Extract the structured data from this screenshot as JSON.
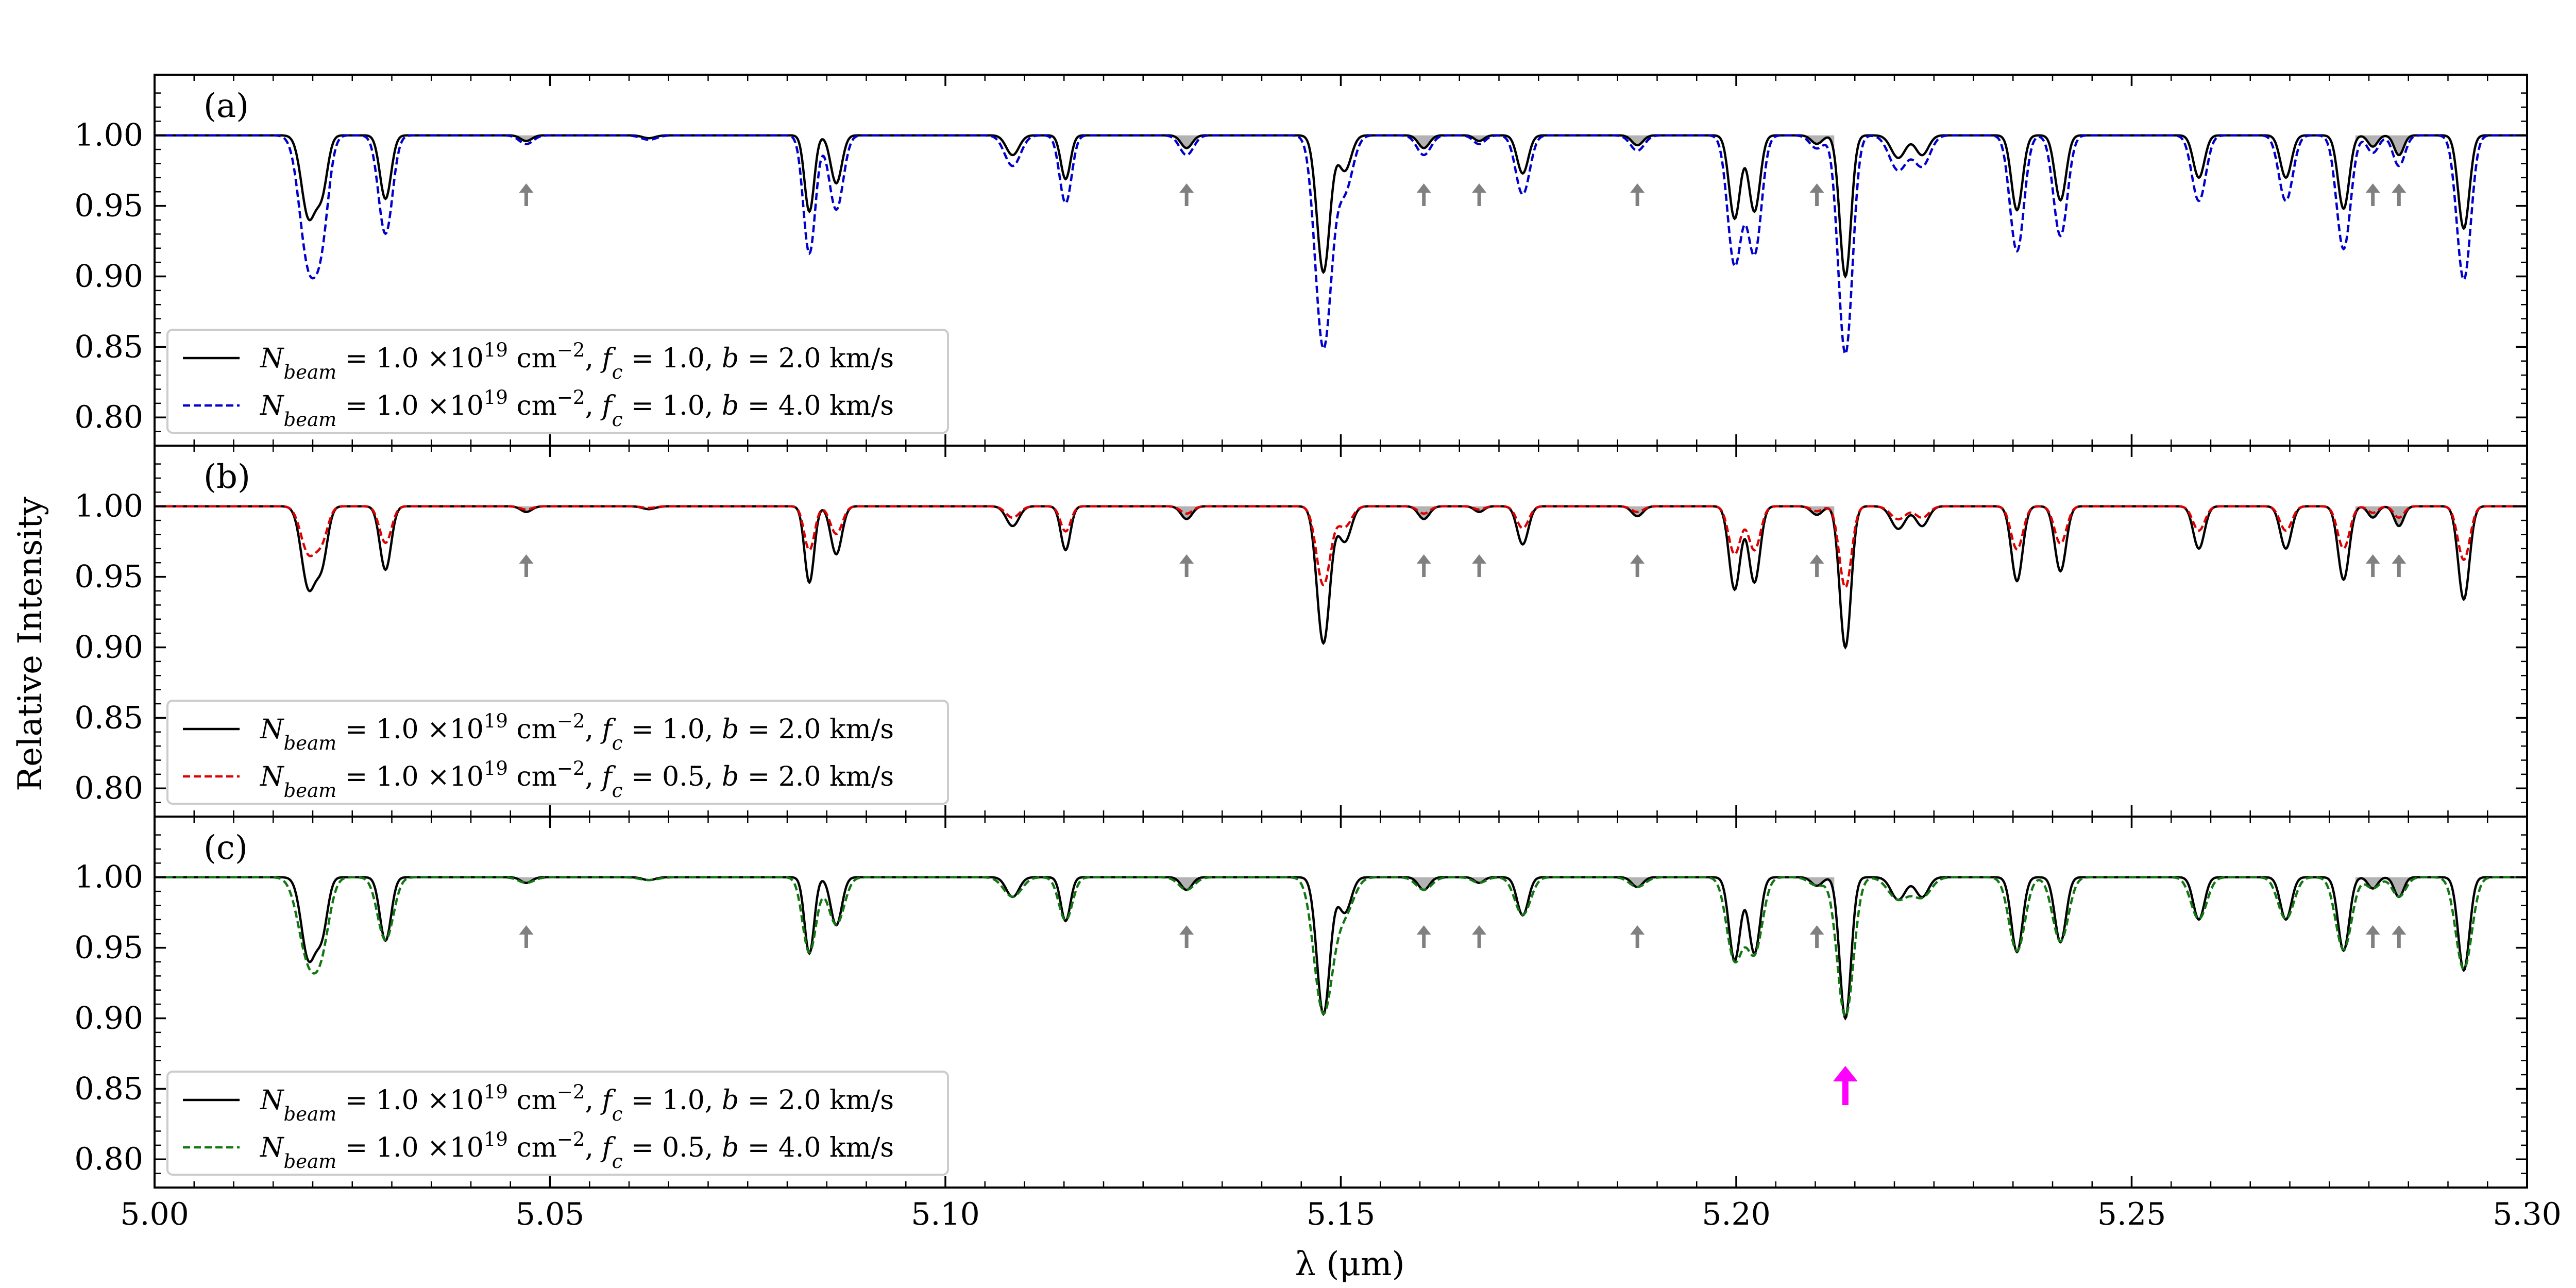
{
  "chart_data": {
    "type": "line",
    "title": "",
    "xlabel": "λ (μm)",
    "ylabel": "Relative Intensity",
    "xlim": [
      5.0,
      5.3
    ],
    "ylim": [
      0.78,
      1.043
    ],
    "x_ticks": [
      "5.00",
      "5.05",
      "5.10",
      "5.15",
      "5.20",
      "5.25",
      "5.30"
    ],
    "y_ticks": [
      "0.80",
      "0.85",
      "0.90",
      "0.95",
      "1.00"
    ],
    "gray_marker_positions": [
      5.047,
      5.1305,
      5.1605,
      5.1675,
      5.1875,
      5.2102,
      5.2805,
      5.2838
    ],
    "magenta_marker_position": 5.2138,
    "magenta_marker_panel": "(c)",
    "lines": [
      {
        "center": 5.0195,
        "depth": 0.058,
        "sigma": 0.0009
      },
      {
        "center": 5.0212,
        "depth": 0.035,
        "sigma": 0.0007
      },
      {
        "center": 5.0292,
        "depth": 0.045,
        "sigma": 0.0007
      },
      {
        "center": 5.047,
        "depth": 0.004,
        "sigma": 0.0007
      },
      {
        "center": 5.0625,
        "depth": 0.002,
        "sigma": 0.0008
      },
      {
        "center": 5.0828,
        "depth": 0.054,
        "sigma": 0.0006
      },
      {
        "center": 5.0862,
        "depth": 0.034,
        "sigma": 0.0007
      },
      {
        "center": 5.1085,
        "depth": 0.014,
        "sigma": 0.0008
      },
      {
        "center": 5.1152,
        "depth": 0.031,
        "sigma": 0.0006
      },
      {
        "center": 5.1305,
        "depth": 0.009,
        "sigma": 0.0007
      },
      {
        "center": 5.1478,
        "depth": 0.097,
        "sigma": 0.0008
      },
      {
        "center": 5.1505,
        "depth": 0.025,
        "sigma": 0.0008
      },
      {
        "center": 5.1605,
        "depth": 0.009,
        "sigma": 0.0007
      },
      {
        "center": 5.1675,
        "depth": 0.004,
        "sigma": 0.0006
      },
      {
        "center": 5.173,
        "depth": 0.027,
        "sigma": 0.0007
      },
      {
        "center": 5.1875,
        "depth": 0.007,
        "sigma": 0.0007
      },
      {
        "center": 5.1998,
        "depth": 0.059,
        "sigma": 0.0007
      },
      {
        "center": 5.2023,
        "depth": 0.054,
        "sigma": 0.0007
      },
      {
        "center": 5.2102,
        "depth": 0.006,
        "sigma": 0.0007
      },
      {
        "center": 5.2138,
        "depth": 0.1,
        "sigma": 0.0007
      },
      {
        "center": 5.2205,
        "depth": 0.016,
        "sigma": 0.0009
      },
      {
        "center": 5.2235,
        "depth": 0.014,
        "sigma": 0.0008
      },
      {
        "center": 5.2355,
        "depth": 0.053,
        "sigma": 0.0007
      },
      {
        "center": 5.241,
        "depth": 0.046,
        "sigma": 0.0007
      },
      {
        "center": 5.2585,
        "depth": 0.03,
        "sigma": 0.0007
      },
      {
        "center": 5.2695,
        "depth": 0.03,
        "sigma": 0.0007
      },
      {
        "center": 5.2768,
        "depth": 0.052,
        "sigma": 0.0007
      },
      {
        "center": 5.2805,
        "depth": 0.008,
        "sigma": 0.0006
      },
      {
        "center": 5.2838,
        "depth": 0.014,
        "sigma": 0.0006
      },
      {
        "center": 5.292,
        "depth": 0.066,
        "sigma": 0.0007
      }
    ],
    "panels": [
      {
        "label": "(a)",
        "series": [
          {
            "name": "f_c = 1.0, b = 2.0 km/s",
            "color": "#000000",
            "dash": "",
            "fc": 1.0,
            "scale": 1.0
          },
          {
            "name": "f_c = 1.0, b = 4.0 km/s",
            "color": "#0000cc",
            "dash": "14,7",
            "fc": 1.0,
            "scale": 1.55
          }
        ],
        "legend": [
          {
            "n_sub": "beam",
            "exp": "19",
            "exp_unit": "−2",
            "fc": "1.0",
            "b": "2.0 km/s",
            "color": "#000000",
            "dash": ""
          },
          {
            "n_sub": "beam",
            "exp": "19",
            "exp_unit": "−2",
            "fc": "1.0",
            "b": "4.0 km/s",
            "color": "#0000cc",
            "dash": "14,7"
          }
        ]
      },
      {
        "label": "(b)",
        "series": [
          {
            "name": "f_c = 1.0, b = 2.0 km/s",
            "color": "#000000",
            "dash": "",
            "fc": 1.0,
            "scale": 1.0
          },
          {
            "name": "f_c = 0.5, b = 2.0 km/s",
            "color": "#dd0000",
            "dash": "14,7",
            "fc": 0.5,
            "scale": 1.15
          }
        ],
        "legend": [
          {
            "n_sub": "beam",
            "exp": "19",
            "exp_unit": "−2",
            "fc": "1.0",
            "b": "2.0 km/s",
            "color": "#000000",
            "dash": ""
          },
          {
            "n_sub": "beam",
            "exp": "19",
            "exp_unit": "−2",
            "fc": "0.5",
            "b": "2.0 km/s",
            "color": "#dd0000",
            "dash": "14,7"
          }
        ]
      },
      {
        "label": "(c)",
        "series": [
          {
            "name": "f_c = 1.0, b = 2.0 km/s",
            "color": "#000000",
            "dash": "",
            "fc": 1.0,
            "scale": 1.0
          },
          {
            "name": "f_c = 0.5, b = 4.0 km/s",
            "color": "#117711",
            "dash": "14,7",
            "fc": 0.5,
            "scale": 1.97
          }
        ],
        "legend": [
          {
            "n_sub": "beam",
            "exp": "19",
            "exp_unit": "−2",
            "fc": "1.0",
            "b": "2.0 km/s",
            "color": "#000000",
            "dash": ""
          },
          {
            "n_sub": "beam",
            "exp": "19",
            "exp_unit": "−2",
            "fc": "0.5",
            "b": "4.0 km/s",
            "color": "#117711",
            "dash": "14,7"
          }
        ]
      }
    ]
  }
}
